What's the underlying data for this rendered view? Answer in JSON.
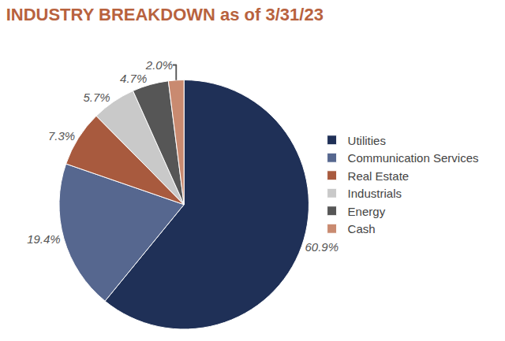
{
  "chart_data": {
    "type": "pie",
    "title": "INDUSTRY BREAKDOWN as of 3/31/23",
    "categories": [
      "Utilities",
      "Communication Services",
      "Real Estate",
      "Industrials",
      "Energy",
      "Cash"
    ],
    "values": [
      60.9,
      19.4,
      7.3,
      5.7,
      4.7,
      2.0
    ],
    "value_labels": [
      "60.9%",
      "19.4%",
      "7.3%",
      "5.7%",
      "4.7%",
      "2.0%"
    ],
    "colors": [
      "#1f3057",
      "#56678f",
      "#a85a3e",
      "#c9c9c9",
      "#565656",
      "#c98a70"
    ],
    "data_labels": true,
    "legend": "right"
  }
}
